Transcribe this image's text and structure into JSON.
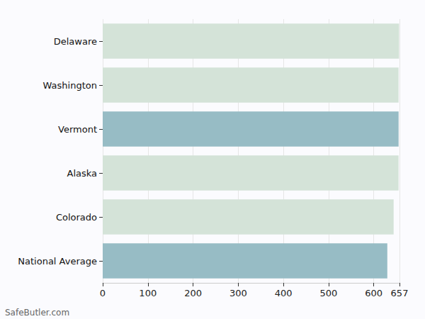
{
  "chart_data": {
    "type": "bar",
    "orientation": "horizontal",
    "categories": [
      "Delaware",
      "Washington",
      "Vermont",
      "Alaska",
      "Colorado",
      "National Average"
    ],
    "values": [
      656,
      655,
      655,
      655,
      644,
      630
    ],
    "colors": [
      "#d4e3d8",
      "#d4e3d8",
      "#97bcc5",
      "#d4e3d8",
      "#d4e3d8",
      "#97bcc5"
    ],
    "xlim": [
      0,
      657
    ],
    "xticks": [
      0,
      100,
      200,
      300,
      400,
      500,
      600
    ],
    "grid": true,
    "annotations": [
      "SafeButler.com"
    ]
  }
}
